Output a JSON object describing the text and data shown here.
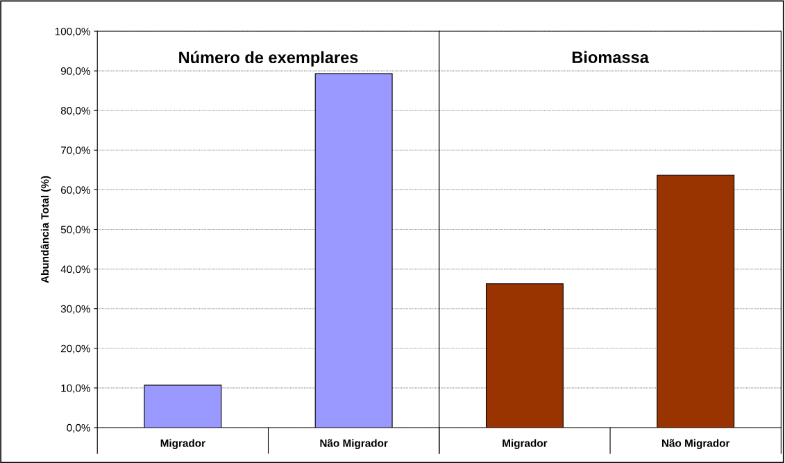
{
  "chart_data": [
    {
      "type": "bar",
      "title": "Número de exemplares",
      "ylabel": "Abundância Total (%)",
      "categories": [
        "Migrador",
        "Não Migrador"
      ],
      "values": [
        10.7,
        89.3
      ],
      "color": "#9999ff",
      "ylim": [
        0,
        100
      ],
      "yticks": [
        {
          "value": 0,
          "label": "0,0%"
        },
        {
          "value": 10,
          "label": "10,0%"
        },
        {
          "value": 20,
          "label": "20,0%"
        },
        {
          "value": 30,
          "label": "30,0%"
        },
        {
          "value": 40,
          "label": "40,0%"
        },
        {
          "value": 50,
          "label": "50,0%"
        },
        {
          "value": 60,
          "label": "60,0%"
        },
        {
          "value": 70,
          "label": "70,0%"
        },
        {
          "value": 80,
          "label": "80,0%"
        },
        {
          "value": 90,
          "label": "90,0%"
        },
        {
          "value": 100,
          "label": "100,0%"
        }
      ],
      "grid": "y"
    },
    {
      "type": "bar",
      "title": "Biomassa",
      "categories": [
        "Migrador",
        "Não Migrador"
      ],
      "values": [
        36.3,
        63.7
      ],
      "color": "#993300",
      "ylim": [
        0,
        100
      ],
      "yticks": [
        {
          "value": 0,
          "label": null
        },
        {
          "value": 10,
          "label": null
        },
        {
          "value": 20,
          "label": null
        },
        {
          "value": 30,
          "label": null
        },
        {
          "value": 40,
          "label": null
        },
        {
          "value": 50,
          "label": null
        },
        {
          "value": 60,
          "label": null
        },
        {
          "value": 70,
          "label": null
        },
        {
          "value": 80,
          "label": null
        },
        {
          "value": 90,
          "label": null
        },
        {
          "value": 100,
          "label": null
        }
      ],
      "grid": "y",
      "tick_labels": "x"
    }
  ]
}
